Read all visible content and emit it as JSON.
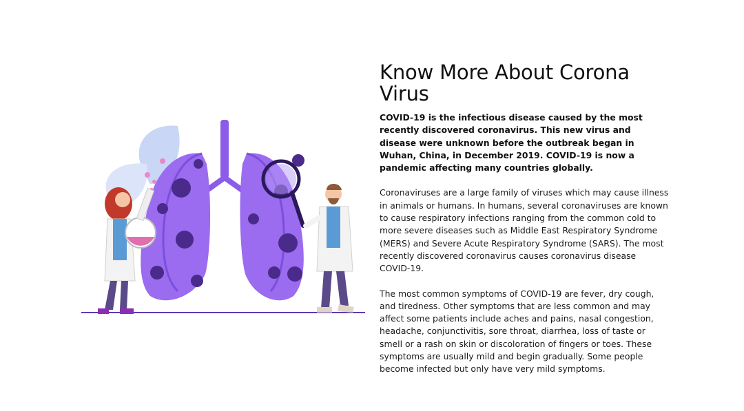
{
  "section": {
    "title": "Know More About Corona Virus",
    "lead": "COVID-19 is the infectious disease caused by the most recently discovered coronavirus. This new virus and disease were unknown before the outbreak began in Wuhan, China, in December 2019. COVID-19 is now a pandemic affecting many countries globally.",
    "paragraphs": [
      "Coronaviruses are a large family of viruses which may cause illness in animals or humans. In humans, several coronaviruses are known to cause respiratory infections ranging from the common cold to more severe diseases such as Middle East Respiratory Syndrome (MERS) and Severe Acute Respiratory Syndrome (SARS). The most recently discovered coronavirus causes coronavirus disease COVID-19.",
      "The most common symptoms of COVID-19 are fever, dry cough, and tiredness. Other symptoms that are less common and may affect some patients include aches and pains, nasal congestion, headache, conjunctivitis, sore throat, diarrhea, loss of taste or smell or a rash on skin or discoloration of fingers or toes. These symptoms are usually mild and begin gradually. Some people become infected but only have very mild symptoms."
    ]
  },
  "illustration": {
    "icon": "lungs-with-doctors-illustration",
    "colors": {
      "lung": "#9b6bf0",
      "lung_dark": "#6a3fd0",
      "virus": "#4a2a8a",
      "leaf": "#c9d6f5",
      "accent_pink": "#e889c9"
    }
  }
}
